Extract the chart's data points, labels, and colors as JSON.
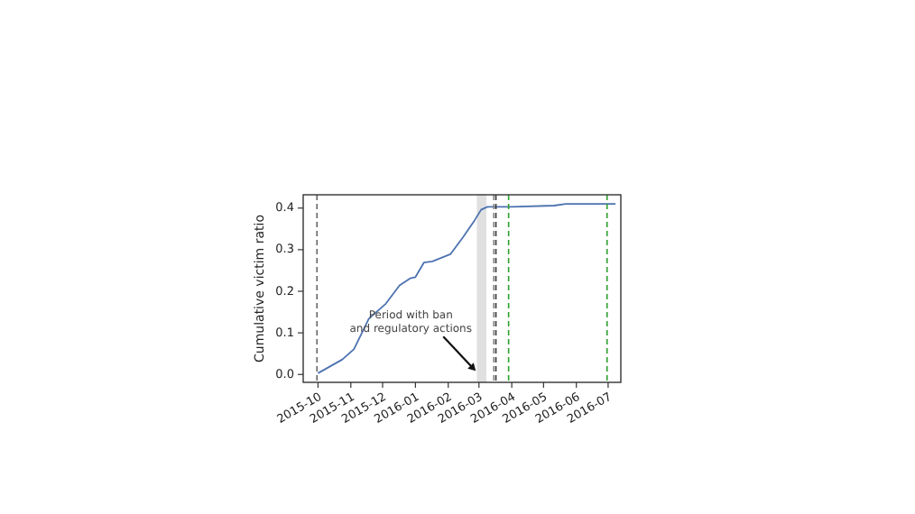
{
  "chart_data": {
    "type": "line",
    "ylabel": "Cumulative victim ratio",
    "x": [
      "2015-10-01",
      "2015-10-24",
      "2015-11-04",
      "2015-11-18",
      "2015-12-04",
      "2015-12-17",
      "2015-12-27",
      "2016-01-01",
      "2016-01-09",
      "2016-01-17",
      "2016-02-03",
      "2016-02-15",
      "2016-02-26",
      "2016-03-03",
      "2016-03-09",
      "2016-04-01",
      "2016-05-11",
      "2016-05-22",
      "2016-07-08"
    ],
    "series": [
      {
        "color": "#4c72b0",
        "values": [
          0.003,
          0.036,
          0.061,
          0.134,
          0.17,
          0.214,
          0.231,
          0.234,
          0.269,
          0.272,
          0.289,
          0.33,
          0.371,
          0.396,
          0.403,
          0.403,
          0.406,
          0.41,
          0.41
        ]
      }
    ],
    "xlim": [
      "2015-09-17",
      "2016-07-13"
    ],
    "xticks": [
      "2015-10",
      "2015-11",
      "2015-12",
      "2016-01",
      "2016-02",
      "2016-03",
      "2016-04",
      "2016-05",
      "2016-06",
      "2016-07"
    ],
    "ylim": [
      -0.019,
      0.432
    ],
    "yticks": [
      {
        "value": 0,
        "label": "0.0"
      },
      0.1,
      0.2,
      0.3,
      0.4
    ],
    "grid": false,
    "line_style": "solid",
    "marker": "none",
    "bands": [
      {
        "axis": "x",
        "from": "2016-02-28",
        "to": "2016-03-08",
        "color": "#e0e0e0"
      }
    ],
    "ref_lines": [
      {
        "axis": "x",
        "value": "2015-09-30",
        "color": "#666666",
        "line_style": "dashed"
      },
      {
        "axis": "x",
        "value": "2016-03-15",
        "color": "#888888",
        "line_style": "dashed"
      },
      {
        "axis": "x",
        "value": "2016-03-17",
        "color": "#333333",
        "line_style": "dashed"
      },
      {
        "axis": "x",
        "value": "2016-03-29",
        "color": "#2ca02c",
        "line_style": "dashed"
      },
      {
        "axis": "x",
        "value": "2016-06-30",
        "color": "#2ca02c",
        "line_style": "dashed"
      }
    ],
    "annotations": [
      {
        "text": "Period with ban\nand regulatory actions",
        "x": "2016-02-27",
        "y": 0.0
      }
    ]
  }
}
